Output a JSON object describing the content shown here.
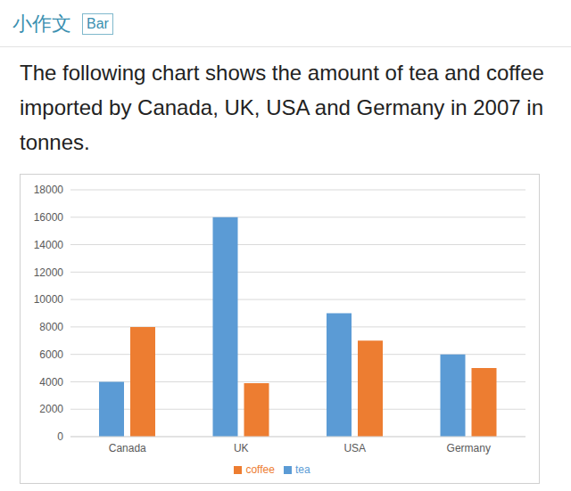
{
  "header": {
    "label": "小作文",
    "tag": "Bar"
  },
  "chart_data": {
    "type": "bar",
    "title": "The following chart shows the amount of tea and coffee imported by Canada, UK, USA and Germany in 2007 in tonnes.",
    "categories": [
      "Canada",
      "UK",
      "USA",
      "Germany"
    ],
    "series": [
      {
        "name": "tea",
        "color": "#5b9bd5",
        "values": [
          4000,
          16000,
          9000,
          6000
        ]
      },
      {
        "name": "coffee",
        "color": "#ed7d31",
        "values": [
          8000,
          3900,
          7000,
          5000
        ]
      }
    ],
    "ylim": [
      0,
      18000
    ],
    "yticks": [
      0,
      2000,
      4000,
      6000,
      8000,
      10000,
      12000,
      14000,
      16000,
      18000
    ],
    "grid": true,
    "legend": "bottom"
  }
}
